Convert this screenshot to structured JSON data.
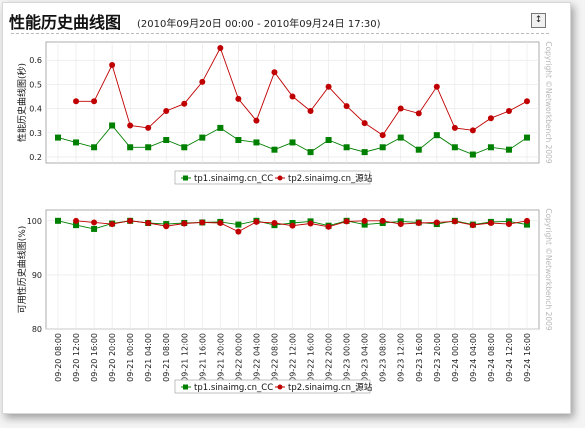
{
  "header": {
    "title": "性能历史曲线图",
    "range": "(2010年09月20日  00:00 - 2010年09月24日  17:30)",
    "toggle_icon": "collapse-icon"
  },
  "chart_data": [
    {
      "type": "line",
      "ylabel": "性能历史曲线图(秒)",
      "ylim": [
        0.175,
        0.675
      ],
      "yticks": [
        "0.6",
        "0.5",
        "0.4",
        "0.3",
        "0.2"
      ],
      "ytick_values": [
        0.6,
        0.5,
        0.4,
        0.3,
        0.2
      ],
      "watermark": "Copyright ©Networkbench 2009",
      "legend_position": "bottom",
      "series": [
        {
          "name": "tp1.sinaimg.cn_CC",
          "color": "#008000",
          "marker": "square",
          "values": [
            0.28,
            0.26,
            0.24,
            0.33,
            0.24,
            0.24,
            0.27,
            0.24,
            0.28,
            0.32,
            0.27,
            0.26,
            0.23,
            0.26,
            0.22,
            0.27,
            0.24,
            0.22,
            0.24,
            0.28,
            0.23,
            0.29,
            0.24,
            0.21,
            0.24,
            0.23,
            0.28
          ]
        },
        {
          "name": "tp2.sinaimg.cn_源站",
          "color": "#c00000",
          "marker": "circle",
          "values": [
            null,
            0.43,
            0.43,
            0.58,
            0.33,
            0.32,
            0.39,
            0.42,
            0.51,
            0.65,
            0.44,
            0.35,
            0.55,
            0.45,
            0.39,
            0.49,
            0.41,
            0.34,
            0.29,
            0.4,
            0.38,
            0.49,
            0.32,
            0.31,
            0.36,
            0.39,
            0.43
          ]
        }
      ]
    },
    {
      "type": "line",
      "ylabel": "可用性历史曲线图(%)",
      "ylim": [
        80,
        102
      ],
      "yticks": [
        "100",
        "90",
        "80"
      ],
      "ytick_values": [
        100,
        90,
        80
      ],
      "watermark": "Copyright ©Networkbench 2009",
      "legend_position": "bottom",
      "categories": [
        "09-20 08:00",
        "09-20 12:00",
        "09-20 16:00",
        "09-20 20:00",
        "09-21 00:00",
        "09-21 04:00",
        "09-21 08:00",
        "09-21 12:00",
        "09-21 16:00",
        "09-21 20:00",
        "09-22 00:00",
        "09-22 04:00",
        "09-22 08:00",
        "09-22 12:00",
        "09-22 16:00",
        "09-22 20:00",
        "09-23 00:00",
        "09-23 04:00",
        "09-23 08:00",
        "09-23 12:00",
        "09-23 16:00",
        "09-23 20:00",
        "09-24 00:00",
        "09-24 04:00",
        "09-24 08:00",
        "09-24 12:00",
        "09-24 16:00"
      ],
      "series": [
        {
          "name": "tp1.sinaimg.cn_CC",
          "color": "#008000",
          "marker": "square",
          "values": [
            100,
            99.2,
            98.5,
            99.5,
            100,
            99.6,
            99.4,
            99.6,
            99.7,
            99.8,
            99.3,
            100,
            99.2,
            99.6,
            99.9,
            99.1,
            100,
            99.3,
            99.6,
            99.9,
            99.7,
            99.4,
            100,
            99.3,
            99.8,
            99.9,
            99.3
          ]
        },
        {
          "name": "tp2.sinaimg.cn_源站",
          "color": "#c00000",
          "marker": "circle",
          "values": [
            null,
            100,
            99.7,
            99.4,
            100,
            99.6,
            99,
            99.5,
            99.7,
            99.6,
            98,
            99.8,
            99.6,
            99.1,
            99.5,
            98.9,
            99.9,
            100,
            100,
            99.4,
            99.6,
            99.7,
            99.9,
            99.2,
            99.6,
            99.4,
            100
          ]
        }
      ]
    }
  ]
}
